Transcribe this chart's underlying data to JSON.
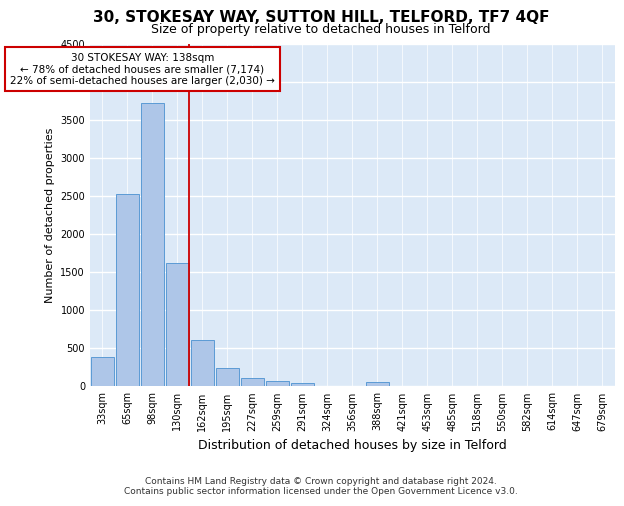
{
  "title_line1": "30, STOKESAY WAY, SUTTON HILL, TELFORD, TF7 4QF",
  "title_line2": "Size of property relative to detached houses in Telford",
  "xlabel": "Distribution of detached houses by size in Telford",
  "ylabel": "Number of detached properties",
  "categories": [
    "33sqm",
    "65sqm",
    "98sqm",
    "130sqm",
    "162sqm",
    "195sqm",
    "227sqm",
    "259sqm",
    "291sqm",
    "324sqm",
    "356sqm",
    "388sqm",
    "421sqm",
    "453sqm",
    "485sqm",
    "518sqm",
    "550sqm",
    "582sqm",
    "614sqm",
    "647sqm",
    "679sqm"
  ],
  "values": [
    380,
    2520,
    3720,
    1620,
    600,
    240,
    105,
    60,
    45,
    0,
    0,
    50,
    0,
    0,
    0,
    0,
    0,
    0,
    0,
    0,
    0
  ],
  "bar_color": "#aec6e8",
  "bar_edge_color": "#5b9bd5",
  "background_color": "#dce9f7",
  "grid_color": "#ffffff",
  "annotation_text": "30 STOKESAY WAY: 138sqm\n← 78% of detached houses are smaller (7,174)\n22% of semi-detached houses are larger (2,030) →",
  "annotation_box_color": "#ffffff",
  "annotation_box_edge_color": "#cc0000",
  "vline_color": "#cc0000",
  "ylim": [
    0,
    4500
  ],
  "yticks": [
    0,
    500,
    1000,
    1500,
    2000,
    2500,
    3000,
    3500,
    4000,
    4500
  ],
  "footnote_line1": "Contains HM Land Registry data © Crown copyright and database right 2024.",
  "footnote_line2": "Contains public sector information licensed under the Open Government Licence v3.0.",
  "title_fontsize": 11,
  "subtitle_fontsize": 9,
  "xlabel_fontsize": 9,
  "ylabel_fontsize": 8,
  "tick_fontsize": 7,
  "annotation_fontsize": 7.5,
  "footnote_fontsize": 6.5
}
